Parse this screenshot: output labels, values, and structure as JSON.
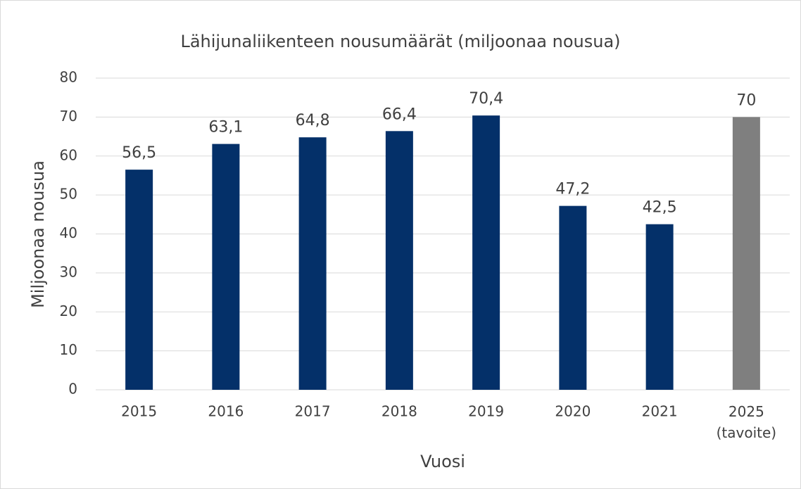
{
  "chart_data": {
    "type": "bar",
    "title": "Lähijunaliikenteen nousumäärät (miljoonaa nousua)",
    "x_label": "Vuosi",
    "y_label": "Miljoonaa nousua",
    "categories": [
      "2015",
      "2016",
      "2017",
      "2018",
      "2019",
      "2020",
      "2021",
      "2025 (tavoite)"
    ],
    "values": [
      56.5,
      63.1,
      64.8,
      66.4,
      70.4,
      47.2,
      42.5,
      70
    ],
    "value_labels": [
      "56,5",
      "63,1",
      "64,8",
      "66,4",
      "70,4",
      "47,2",
      "42,5",
      "70"
    ],
    "colors": [
      "#043069",
      "#043069",
      "#043069",
      "#043069",
      "#043069",
      "#043069",
      "#043069",
      "#7f7f7f"
    ],
    "ylim": [
      0,
      80
    ],
    "yticks": [
      0,
      10,
      20,
      30,
      40,
      50,
      60,
      70,
      80
    ],
    "grid": true
  }
}
